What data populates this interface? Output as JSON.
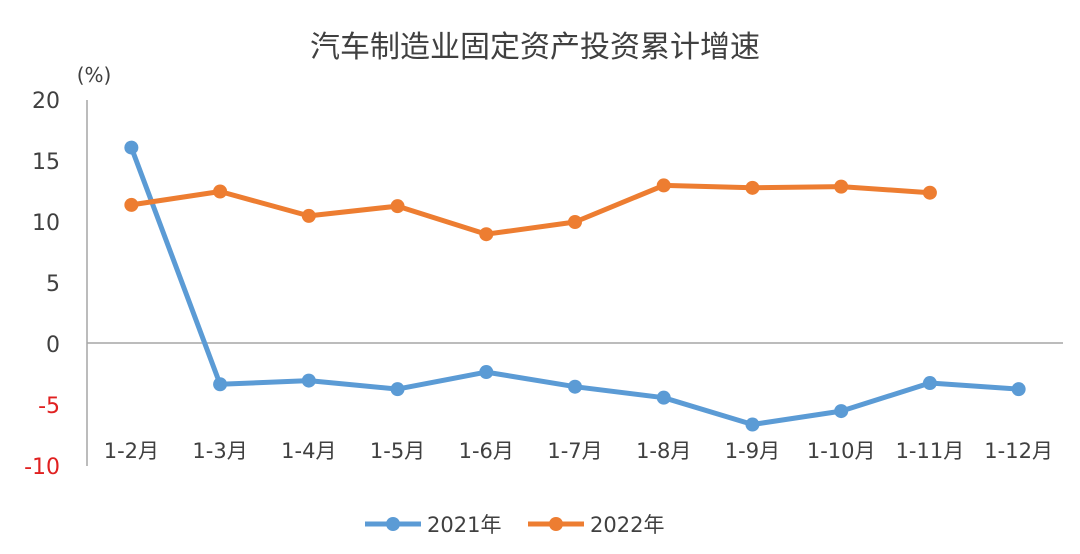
{
  "chart_data": {
    "type": "line",
    "title": "汽车制造业固定资产投资累计增速",
    "unit_label": "(%)",
    "categories": [
      "1-2月",
      "1-3月",
      "1-4月",
      "1-5月",
      "1-6月",
      "1-7月",
      "1-8月",
      "1-9月",
      "1-10月",
      "1-11月",
      "1-12月"
    ],
    "ylim": [
      -10,
      20
    ],
    "yticks": [
      {
        "value": 20,
        "label": "20"
      },
      {
        "value": 15,
        "label": "15"
      },
      {
        "value": 10,
        "label": "10"
      },
      {
        "value": 5,
        "label": "5"
      },
      {
        "value": 0,
        "label": "0"
      },
      {
        "value": -5,
        "label": "-5"
      },
      {
        "value": -10,
        "label": "-10"
      }
    ],
    "grid": false,
    "legend_position": "bottom",
    "series": [
      {
        "name": "2021年",
        "color": "#5b9bd5",
        "values": [
          16.1,
          -3.3,
          -3.0,
          -3.7,
          -2.3,
          -3.5,
          -4.4,
          -6.6,
          -5.5,
          -3.2,
          -3.7
        ]
      },
      {
        "name": "2022年",
        "color": "#ed7d31",
        "values": [
          11.4,
          12.5,
          10.5,
          11.3,
          9.0,
          10.0,
          13.0,
          12.8,
          12.9,
          12.4,
          null
        ]
      }
    ]
  }
}
